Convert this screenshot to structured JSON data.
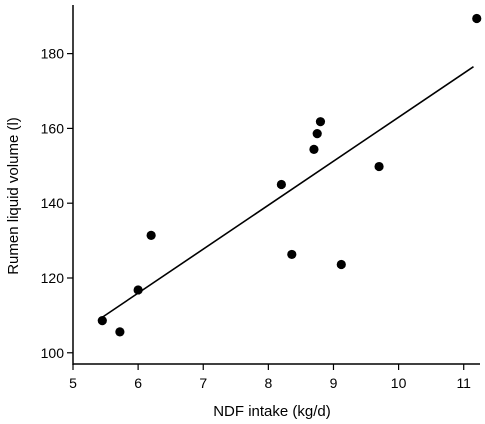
{
  "chart_data": {
    "type": "scatter",
    "title": "",
    "xlabel": "NDF intake (kg/d)",
    "ylabel": "Rumen liquid volume (l)",
    "xlim": [
      5,
      11.25
    ],
    "ylim": [
      97,
      193
    ],
    "xticks": [
      5,
      6,
      7,
      8,
      9,
      10,
      11
    ],
    "yticks": [
      100,
      120,
      140,
      160,
      180
    ],
    "grid": false,
    "legend": "none",
    "points": [
      {
        "x": 5.45,
        "y": 108.6
      },
      {
        "x": 5.72,
        "y": 105.6
      },
      {
        "x": 6.0,
        "y": 116.8
      },
      {
        "x": 6.2,
        "y": 131.4
      },
      {
        "x": 8.2,
        "y": 145.0
      },
      {
        "x": 8.36,
        "y": 126.3
      },
      {
        "x": 8.7,
        "y": 154.4
      },
      {
        "x": 8.75,
        "y": 158.6
      },
      {
        "x": 8.8,
        "y": 161.8
      },
      {
        "x": 9.12,
        "y": 123.6
      },
      {
        "x": 9.7,
        "y": 149.8
      },
      {
        "x": 11.2,
        "y": 189.4
      }
    ],
    "fit_line": {
      "x": [
        5.45,
        11.15
      ],
      "y": [
        109.5,
        176.5
      ]
    },
    "colors": {
      "marker": "#000000",
      "line": "#000000",
      "axis": "#000000"
    }
  }
}
